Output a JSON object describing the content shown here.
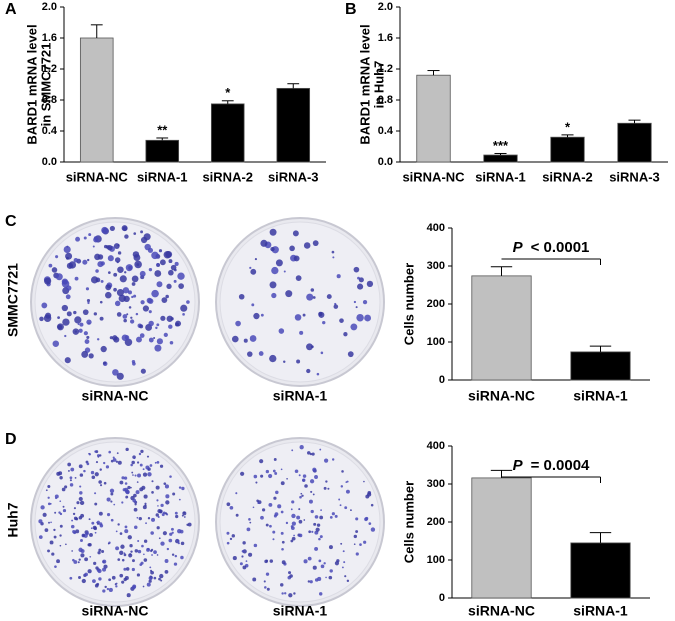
{
  "chart_data": [
    {
      "type": "bar",
      "panel_label": "A",
      "y_label": [
        "BARD1 mRNA level",
        "in SMMC7721"
      ],
      "categories": [
        "siRNA-NC",
        "siRNA-1",
        "siRNA-2",
        "siRNA-3"
      ],
      "values": [
        1.6,
        0.28,
        0.75,
        0.95
      ],
      "errors": [
        0.17,
        0.03,
        0.04,
        0.06
      ],
      "annotations": [
        null,
        "**",
        "*",
        null
      ],
      "colors": [
        "#c0c0c0",
        "#000000",
        "#000000",
        "#000000"
      ],
      "ylim": [
        0,
        2.0
      ],
      "yticks": [
        {
          "value": 0,
          "label": "0.0"
        },
        0.4,
        0.8,
        1.2,
        1.6,
        {
          "value": 2.0,
          "label": "2.0"
        }
      ]
    },
    {
      "type": "bar",
      "panel_label": "B",
      "y_label": [
        "BARD1 mRNA level",
        "in Huh7"
      ],
      "categories": [
        "siRNA-NC",
        "siRNA-1",
        "siRNA-2",
        "siRNA-3"
      ],
      "values": [
        1.12,
        0.09,
        0.32,
        0.5
      ],
      "errors": [
        0.06,
        0.02,
        0.03,
        0.04
      ],
      "annotations": [
        null,
        "***",
        "*",
        null
      ],
      "colors": [
        "#c0c0c0",
        "#000000",
        "#000000",
        "#000000"
      ],
      "ylim": [
        0,
        2.0
      ],
      "yticks": [
        {
          "value": 0,
          "label": "0.0"
        },
        0.4,
        0.8,
        1.2,
        1.6,
        {
          "value": 2.0,
          "label": "2.0"
        }
      ]
    },
    {
      "type": "bar",
      "panel_label": "C",
      "row_label": "SMMC7721",
      "plate_captions": [
        "siRNA-NC",
        "siRNA-1"
      ],
      "y_label": [
        "Cells number"
      ],
      "categories": [
        "siRNA-NC",
        "siRNA-1"
      ],
      "values": [
        274,
        74
      ],
      "errors": [
        24,
        15
      ],
      "colors": [
        "#c0c0c0",
        "#000000"
      ],
      "p_annotation": {
        "symbol": "P",
        "text": "< 0.0001"
      },
      "ylim": [
        0,
        400
      ],
      "yticks": [
        0,
        100,
        200,
        300,
        400
      ]
    },
    {
      "type": "bar",
      "panel_label": "D",
      "row_label": "Huh7",
      "plate_captions": [
        "siRNA-NC",
        "siRNA-1"
      ],
      "y_label": [
        "Cells number"
      ],
      "categories": [
        "siRNA-NC",
        "siRNA-1"
      ],
      "values": [
        316,
        145
      ],
      "errors": [
        20,
        27
      ],
      "colors": [
        "#c0c0c0",
        "#000000"
      ],
      "p_annotation": {
        "symbol": "P",
        "text": "= 0.0004"
      },
      "ylim": [
        0,
        400
      ],
      "yticks": [
        0,
        100,
        200,
        300,
        400
      ]
    }
  ]
}
